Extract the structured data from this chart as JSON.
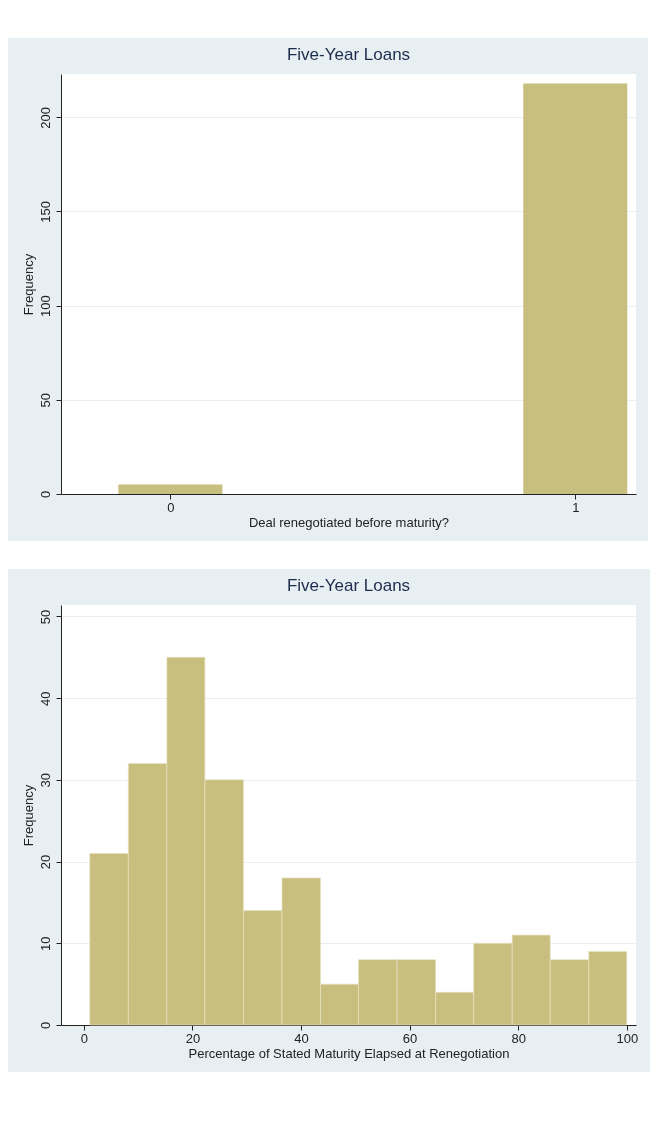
{
  "chart_data": [
    {
      "type": "bar",
      "title": "Five-Year Loans",
      "xlabel": "Deal renegotiated before maturity?",
      "ylabel": "Frequency",
      "x": [
        0,
        1
      ],
      "values": [
        5,
        218
      ],
      "color": "#c8be7e",
      "xlim": [
        -0.27,
        1.15
      ],
      "xticks": [
        0,
        1
      ],
      "ylim": [
        0,
        223
      ],
      "yticks": [
        0,
        50,
        100,
        150,
        200
      ],
      "grid": "y"
    },
    {
      "type": "histogram",
      "title": "Five-Year Loans",
      "xlabel": "Percentage of Stated Maturity Elapsed at Renegotiation",
      "ylabel": "Frequency",
      "bins": [
        1.1,
        8.2,
        15.3,
        22.3,
        29.4,
        36.5,
        43.6,
        50.6,
        57.7,
        64.8,
        71.8,
        78.9,
        85.9,
        93.0,
        100
      ],
      "values": [
        21,
        32,
        45,
        30,
        14,
        18,
        5,
        8,
        8,
        4,
        10,
        11,
        8,
        9
      ],
      "color": "#c8be7e",
      "xlim": [
        -4.2,
        101.7
      ],
      "xticks": [
        0,
        20,
        40,
        60,
        80,
        100
      ],
      "ylim": [
        0,
        51.4
      ],
      "yticks": [
        0,
        10,
        20,
        30,
        40,
        50
      ],
      "grid": "y"
    }
  ]
}
